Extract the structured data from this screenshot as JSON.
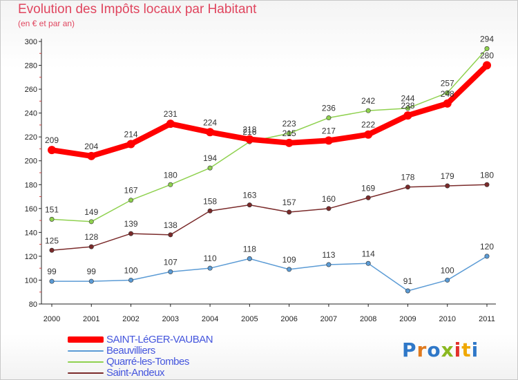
{
  "title": "Evolution des Impôts locaux par Habitant",
  "subtitle": "(en € et par an)",
  "logo": {
    "text": "Proxiti",
    "letter_colors": [
      "#2f78c8",
      "#e07a1e",
      "#2f78c8",
      "#8ab820",
      "#e2302c",
      "#f0a800",
      "#2f78c8"
    ]
  },
  "chart_data": {
    "type": "line",
    "title": "Evolution des Impôts locaux par Habitant",
    "subtitle": "(en € et par an)",
    "x": [
      "2000",
      "2001",
      "2002",
      "2003",
      "2004",
      "2005",
      "2006",
      "2007",
      "2008",
      "2009",
      "2010",
      "2011"
    ],
    "ylim": [
      80,
      300
    ],
    "yticks": [
      80,
      100,
      120,
      140,
      160,
      180,
      200,
      220,
      240,
      260,
      280,
      300
    ],
    "grid": false,
    "legend_position": "bottom-left",
    "series": [
      {
        "name": "SAINT-LéGER-VAUBAN",
        "color": "#ff0000",
        "values": [
          209,
          204,
          214,
          231,
          224,
          218,
          215,
          217,
          222,
          238,
          248,
          280
        ]
      },
      {
        "name": "Beauvilliers",
        "color": "#5b9bd5",
        "values": [
          99,
          99,
          100,
          107,
          110,
          118,
          109,
          113,
          114,
          91,
          100,
          120
        ]
      },
      {
        "name": "Quarré-les-Tombes",
        "color": "#8fd14f",
        "values": [
          151,
          149,
          167,
          180,
          194,
          216,
          223,
          236,
          242,
          244,
          257,
          294
        ]
      },
      {
        "name": "Saint-Andeux",
        "color": "#7a2a2a",
        "values": [
          125,
          128,
          139,
          138,
          158,
          163,
          157,
          160,
          169,
          178,
          179,
          180
        ]
      }
    ]
  }
}
